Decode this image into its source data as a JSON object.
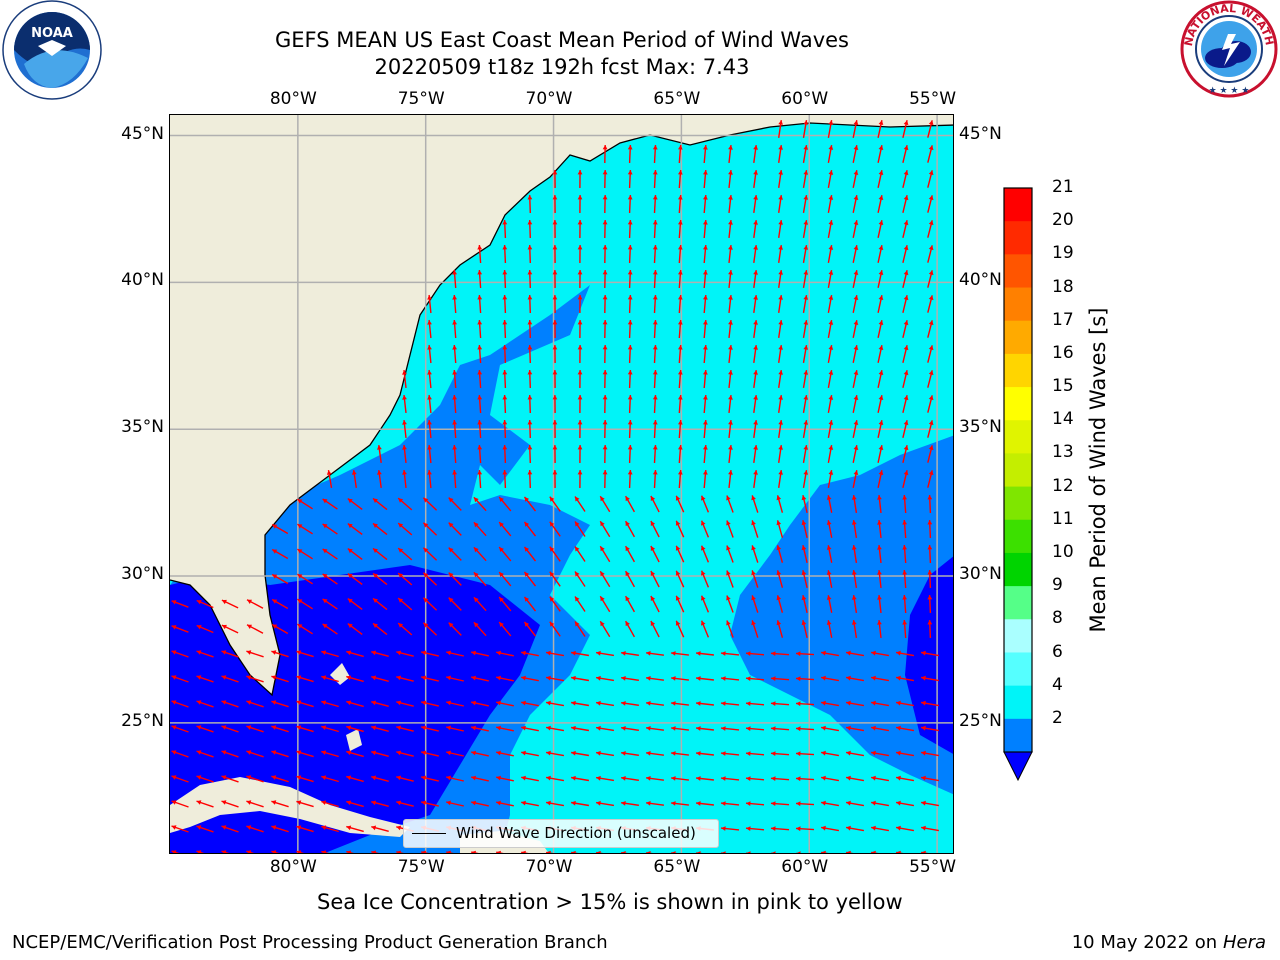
{
  "header": {
    "title_line1": "GEFS MEAN US East Coast Mean Period of Wind Waves",
    "title_line2": "20220509 t18z 192h fcst   Max: 7.43"
  },
  "logos": {
    "left": "noaa-logo",
    "right": "nws-logo"
  },
  "map": {
    "lon_ticks": [
      "80°W",
      "75°W",
      "70°W",
      "65°W",
      "60°W",
      "55°W"
    ],
    "lat_ticks": [
      "45°N",
      "40°N",
      "35°N",
      "30°N",
      "25°N"
    ],
    "lon_range": [
      -85,
      -54.3
    ],
    "lat_range": [
      20.5,
      45.7
    ],
    "land_color": "#efeddb",
    "ocean_color": "#00f4f8",
    "arrow_color": "#ff0000",
    "gridlines": true
  },
  "legend": {
    "label": "Wind Wave Direction (unscaled)"
  },
  "colorbar": {
    "label": "Mean Period of Wind Waves [s]",
    "ticks": [
      "21",
      "20",
      "19",
      "18",
      "17",
      "16",
      "15",
      "14",
      "13",
      "12",
      "11",
      "10",
      "9",
      "8",
      "6",
      "4",
      "2"
    ],
    "colors": [
      "#ff0000",
      "#ff2a00",
      "#ff5500",
      "#ff8000",
      "#ffaa00",
      "#ffd500",
      "#ffff00",
      "#e0f400",
      "#c4ee00",
      "#7fe600",
      "#3ce000",
      "#00d400",
      "#55ff88",
      "#aaffff",
      "#55ffff",
      "#00f4f8",
      "#0080ff"
    ],
    "under_color": "#0000ff"
  },
  "note": "Sea Ice Concentration > 15% is shown in pink to yellow",
  "footer": {
    "left": "NCEP/EMC/Verification Post Processing Product Generation Branch",
    "right_date": "10 May 2022 on",
    "right_host": "Hera"
  }
}
